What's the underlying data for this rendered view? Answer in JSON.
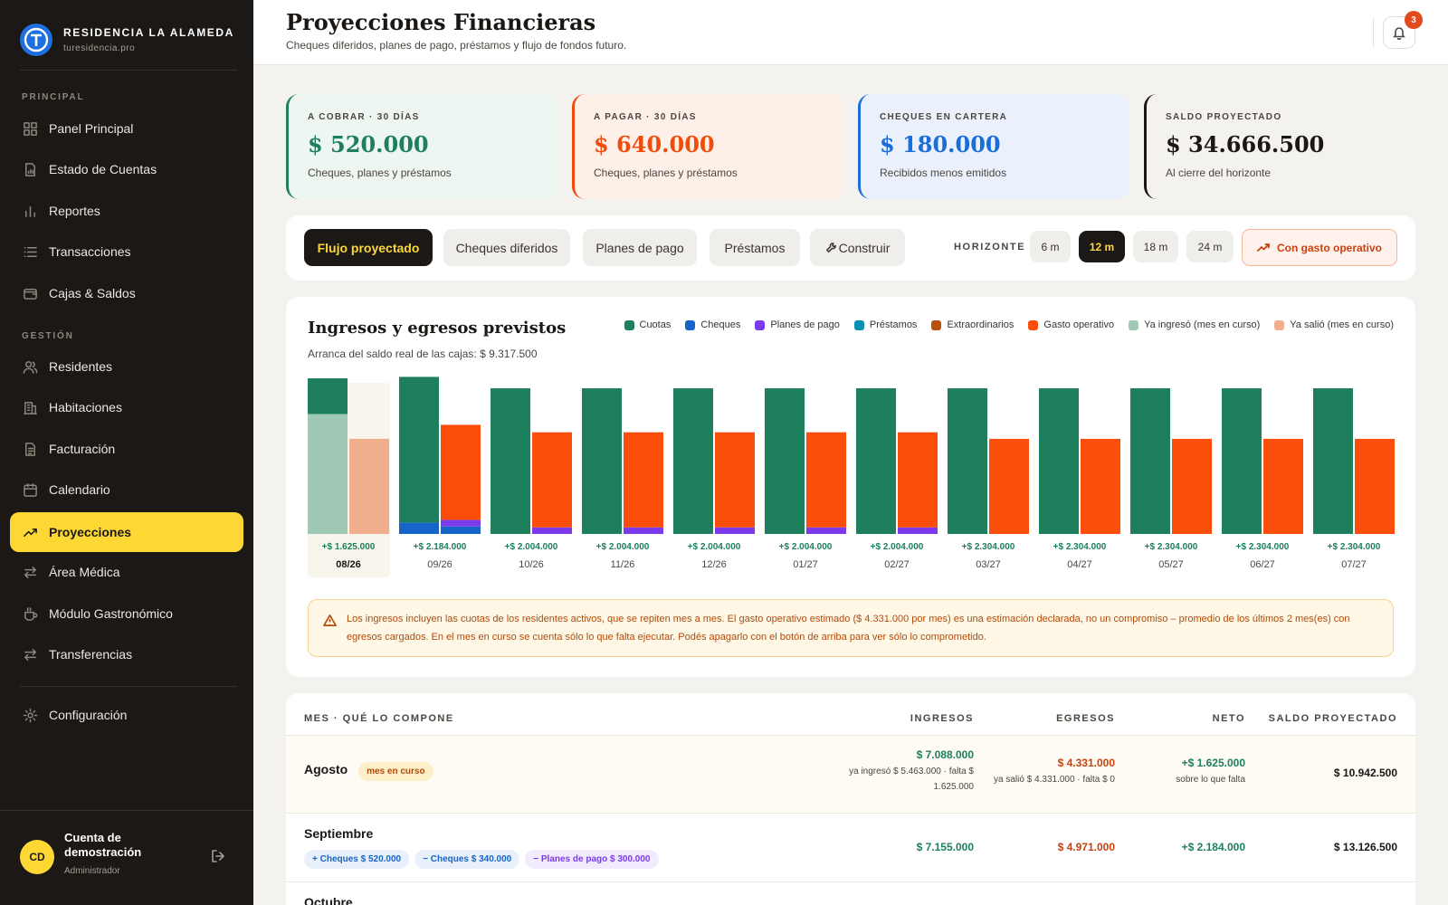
{
  "brand": {
    "name": "RESIDENCIA LA ALAMEDA",
    "url": "turesidencia.pro"
  },
  "sidebar": {
    "section_principal": "PRINCIPAL",
    "section_gestion": "GESTIÓN",
    "items": [
      {
        "label": "Panel Principal",
        "icon": "grid-icon"
      },
      {
        "label": "Estado de Cuentas",
        "icon": "document-chart-icon"
      },
      {
        "label": "Reportes",
        "icon": "bar-chart-icon"
      },
      {
        "label": "Transacciones",
        "icon": "list-icon"
      },
      {
        "label": "Cajas & Saldos",
        "icon": "wallet-icon"
      },
      {
        "label": "Residentes",
        "icon": "users-icon"
      },
      {
        "label": "Habitaciones",
        "icon": "building-icon"
      },
      {
        "label": "Facturación",
        "icon": "invoice-icon"
      },
      {
        "label": "Calendario",
        "icon": "calendar-icon"
      },
      {
        "label": "Proyecciones",
        "icon": "trend-up-icon",
        "active": true
      },
      {
        "label": "Área Médica",
        "icon": "arrows-icon"
      },
      {
        "label": "Módulo Gastronómico",
        "icon": "cup-icon"
      },
      {
        "label": "Transferencias",
        "icon": "transfer-icon"
      },
      {
        "label": "Configuración",
        "icon": "gear-icon"
      }
    ]
  },
  "user": {
    "initials": "CD",
    "name": "Cuenta de demostración",
    "role": "Administrador"
  },
  "header": {
    "title": "Proyecciones Financieras",
    "subtitle": "Cheques diferidos, planes de pago, préstamos y flujo de fondos futuro.",
    "notifications": "3"
  },
  "kpis": [
    {
      "label": "A COBRAR · 30 DÍAS",
      "value": "$ 520.000",
      "sub": "Cheques, planes y préstamos",
      "color": "#1d7f5c",
      "bg": "#eef6f1"
    },
    {
      "label": "A PAGAR · 30 DÍAS",
      "value": "$ 640.000",
      "sub": "Cheques, planes y préstamos",
      "color": "#f04d0d",
      "bg": "#fdf0e8"
    },
    {
      "label": "CHEQUES EN CARTERA",
      "value": "$ 180.000",
      "sub": "Recibidos menos emitidos",
      "color": "#1a6ed8",
      "bg": "#eaf1fc"
    },
    {
      "label": "SALDO PROYECTADO",
      "value": "$ 34.666.500",
      "sub": "Al cierre del horizonte",
      "color": "#1a1714",
      "bg": "#f4f2ee"
    }
  ],
  "toolbar": {
    "tabs": [
      "Flujo proyectado",
      "Cheques diferidos",
      "Planes de pago",
      "Préstamos",
      "Construir"
    ],
    "horizon_label": "HORIZONTE",
    "horizons": [
      "6 m",
      "12 m",
      "18 m",
      "24 m"
    ],
    "horizon_selected": "12 m",
    "operating_toggle": "Con gasto operativo"
  },
  "chart": {
    "title": "Ingresos y egresos previstos",
    "subtitle": "Arranca del saldo real de las cajas: $ 9.317.500",
    "legend": [
      {
        "name": "Cuotas",
        "color": "#1d7f5c"
      },
      {
        "name": "Cheques",
        "color": "#1565c8"
      },
      {
        "name": "Planes de pago",
        "color": "#7c3aed"
      },
      {
        "name": "Préstamos",
        "color": "#0891b2"
      },
      {
        "name": "Extraordinarios",
        "color": "#b8500e"
      },
      {
        "name": "Gasto operativo",
        "color": "#fa4e0a"
      },
      {
        "name": "Ya ingresó (mes en curso)",
        "color": "#9fc9b4"
      },
      {
        "name": "Ya salió (mes en curso)",
        "color": "#f1ae8d"
      }
    ],
    "note": "Los ingresos incluyen las cuotas de los residentes activos, que se repiten mes a mes. El gasto operativo estimado ($ 4.331.000 por mes) es una estimación declarada, no un compromiso – promedio de los últimos 2 mes(es) con egresos cargados. En el mes en curso se cuenta sólo lo que falta ejecutar. Podés apagarlo con el botón de arriba para ver sólo lo comprometido."
  },
  "chart_data": {
    "type": "bar",
    "categories": [
      "08/26",
      "09/26",
      "10/26",
      "11/26",
      "12/26",
      "01/27",
      "02/27",
      "03/27",
      "04/27",
      "05/27",
      "06/27",
      "07/27"
    ],
    "net_labels": [
      "+$ 1.625.000",
      "+$ 2.184.000",
      "+$ 2.004.000",
      "+$ 2.004.000",
      "+$ 2.004.000",
      "+$ 2.004.000",
      "+$ 2.004.000",
      "+$ 2.304.000",
      "+$ 2.304.000",
      "+$ 2.304.000",
      "+$ 2.304.000",
      "+$ 2.304.000"
    ],
    "current_index": 0,
    "ingresos": {
      "ya_ingreso": [
        5463000,
        0,
        0,
        0,
        0,
        0,
        0,
        0,
        0,
        0,
        0,
        0
      ],
      "cuotas": [
        1625000,
        6635000,
        6635000,
        6635000,
        6635000,
        6635000,
        6635000,
        6635000,
        6635000,
        6635000,
        6635000,
        6635000
      ],
      "cheques": [
        0,
        520000,
        0,
        0,
        0,
        0,
        0,
        0,
        0,
        0,
        0,
        0
      ]
    },
    "egresos": {
      "ya_salio": [
        4331000,
        0,
        0,
        0,
        0,
        0,
        0,
        0,
        0,
        0,
        0,
        0
      ],
      "cheques": [
        0,
        340000,
        0,
        0,
        0,
        0,
        0,
        0,
        0,
        0,
        0,
        0
      ],
      "planes_de_pago": [
        0,
        300000,
        300000,
        300000,
        300000,
        300000,
        300000,
        0,
        0,
        0,
        0,
        0
      ],
      "gasto_operativo": [
        0,
        4331000,
        4331000,
        4331000,
        4331000,
        4331000,
        4331000,
        4331000,
        4331000,
        4331000,
        4331000,
        4331000
      ]
    }
  },
  "table": {
    "headers": {
      "month": "MES · QUÉ LO COMPONE",
      "ingresos": "INGRESOS",
      "egresos": "EGRESOS",
      "neto": "NETO",
      "saldo": "SALDO PROYECTADO"
    },
    "rows": [
      {
        "month": "Agosto",
        "badge": "mes en curso",
        "ingresos": "$ 7.088.000",
        "ingresos_sub": "ya ingresó $ 5.463.000 · falta $ 1.625.000",
        "egresos": "$ 4.331.000",
        "egresos_sub": "ya salió $ 4.331.000 · falta $ 0",
        "neto": "+$ 1.625.000",
        "neto_sub": "sobre lo que falta",
        "saldo": "$ 10.942.500"
      },
      {
        "month": "Septiembre",
        "pills": [
          "+ Cheques $ 520.000",
          "− Cheques $ 340.000",
          "− Planes de pago $ 300.000"
        ],
        "ingresos": "$ 7.155.000",
        "egresos": "$ 4.971.000",
        "neto": "+$ 2.184.000",
        "saldo": "$ 13.126.500"
      },
      {
        "month": "Octubre"
      }
    ]
  }
}
